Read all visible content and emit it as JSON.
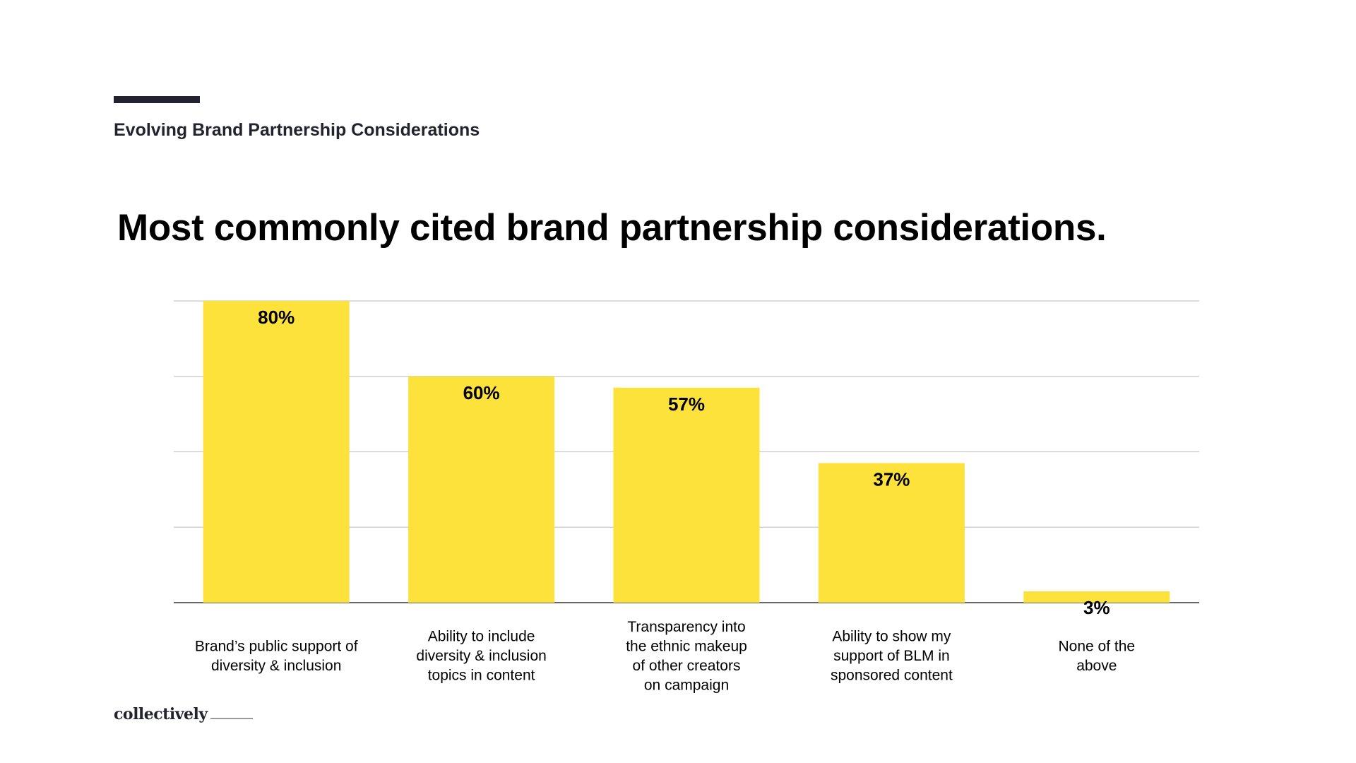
{
  "header": {
    "section_title": "Evolving Brand Partnership Considerations",
    "headline": "Most commonly cited brand partnership considerations."
  },
  "footer": {
    "logo_text": "collectively"
  },
  "colors": {
    "accent_rule": "#23232f",
    "bar": "#fde23c",
    "gridline": "#c8c8c8",
    "axis": "#333333",
    "text": "#000000"
  },
  "chart_data": {
    "type": "bar",
    "title": "Most commonly cited brand partnership considerations.",
    "categories": [
      [
        "Brand’s public support of",
        "diversity & inclusion"
      ],
      [
        "Ability to include",
        "diversity & inclusion",
        "topics in content"
      ],
      [
        "Transparency into",
        "the ethnic makeup",
        "of other creators",
        "on campaign"
      ],
      [
        "Ability to show my",
        "support of BLM in",
        "sponsored content"
      ],
      [
        "None of the",
        "above"
      ]
    ],
    "values": [
      80,
      60,
      57,
      37,
      3
    ],
    "data_labels": [
      "80%",
      "60%",
      "57%",
      "37%",
      "3%"
    ],
    "ylim": [
      0,
      80
    ],
    "gridlines": [
      20,
      40,
      60,
      80
    ],
    "grid": true,
    "legend": "none",
    "xlabel": "",
    "ylabel": ""
  }
}
